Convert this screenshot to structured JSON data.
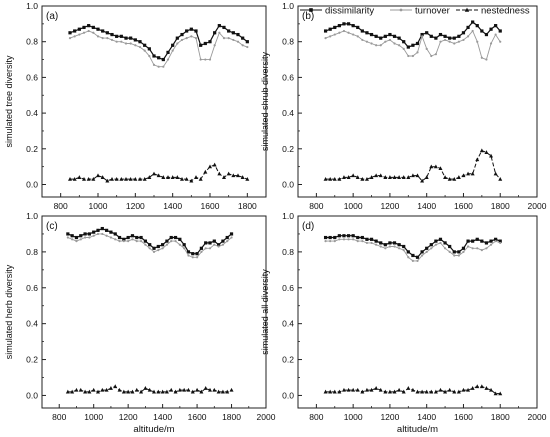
{
  "legend": {
    "items": [
      {
        "label": "dissimilarity",
        "marker": "square",
        "color": "#111111",
        "dash": "solid"
      },
      {
        "label": "turnover",
        "marker": "circle",
        "color": "#9a9a9a",
        "dash": "solid"
      },
      {
        "label": "nestedness",
        "marker": "triangle",
        "color": "#111111",
        "dash": "dashed"
      }
    ],
    "placement": "top-right"
  },
  "chart_data": [
    {
      "type": "line",
      "panel_label": "(a)",
      "xlabel": "",
      "ylabel": "simulated tree diversity",
      "xlim": [
        700,
        1900
      ],
      "ylim": [
        -0.07,
        1.0
      ],
      "xticks": [
        "800",
        "1000",
        "1200",
        "1400",
        "1600",
        "1800"
      ],
      "yticks": [
        "0.0",
        "0.2",
        "0.4",
        "0.6",
        "0.8",
        "1.0"
      ],
      "x": [
        850,
        875,
        900,
        925,
        950,
        975,
        1000,
        1025,
        1050,
        1075,
        1100,
        1125,
        1150,
        1175,
        1200,
        1225,
        1250,
        1275,
        1300,
        1325,
        1350,
        1375,
        1400,
        1425,
        1450,
        1475,
        1500,
        1525,
        1550,
        1575,
        1600,
        1625,
        1650,
        1675,
        1700,
        1725,
        1750,
        1775,
        1800
      ],
      "series": [
        {
          "name": "dissimilarity",
          "values": [
            0.85,
            0.86,
            0.87,
            0.88,
            0.89,
            0.88,
            0.87,
            0.86,
            0.85,
            0.84,
            0.83,
            0.83,
            0.82,
            0.82,
            0.81,
            0.8,
            0.78,
            0.76,
            0.72,
            0.71,
            0.7,
            0.74,
            0.78,
            0.82,
            0.84,
            0.86,
            0.87,
            0.86,
            0.78,
            0.79,
            0.8,
            0.85,
            0.89,
            0.88,
            0.86,
            0.85,
            0.84,
            0.82,
            0.8
          ]
        },
        {
          "name": "turnover",
          "values": [
            0.82,
            0.83,
            0.84,
            0.85,
            0.86,
            0.85,
            0.83,
            0.82,
            0.82,
            0.81,
            0.8,
            0.8,
            0.79,
            0.79,
            0.78,
            0.77,
            0.75,
            0.72,
            0.67,
            0.66,
            0.66,
            0.7,
            0.75,
            0.79,
            0.81,
            0.82,
            0.83,
            0.82,
            0.7,
            0.7,
            0.7,
            0.78,
            0.85,
            0.82,
            0.82,
            0.81,
            0.8,
            0.78,
            0.77
          ]
        },
        {
          "name": "nestedness",
          "values": [
            0.03,
            0.03,
            0.04,
            0.03,
            0.03,
            0.03,
            0.05,
            0.04,
            0.02,
            0.03,
            0.03,
            0.03,
            0.03,
            0.03,
            0.03,
            0.03,
            0.03,
            0.04,
            0.06,
            0.05,
            0.04,
            0.04,
            0.04,
            0.04,
            0.03,
            0.03,
            0.02,
            0.04,
            0.03,
            0.07,
            0.1,
            0.11,
            0.06,
            0.04,
            0.06,
            0.05,
            0.05,
            0.04,
            0.03
          ]
        }
      ]
    },
    {
      "type": "line",
      "panel_label": "(b)",
      "xlabel": "",
      "ylabel": "simulated shrub diversity",
      "xlim": [
        700,
        2000
      ],
      "ylim": [
        -0.07,
        1.0
      ],
      "xticks": [
        "800",
        "1000",
        "1200",
        "1400",
        "1600",
        "1800",
        "2000"
      ],
      "yticks": [
        "0.0",
        "0.2",
        "0.4",
        "0.6",
        "0.8",
        "1.0"
      ],
      "x": [
        850,
        875,
        900,
        925,
        950,
        975,
        1000,
        1025,
        1050,
        1075,
        1100,
        1125,
        1150,
        1175,
        1200,
        1225,
        1250,
        1275,
        1300,
        1325,
        1350,
        1375,
        1400,
        1425,
        1450,
        1475,
        1500,
        1525,
        1550,
        1575,
        1600,
        1625,
        1650,
        1675,
        1700,
        1725,
        1750,
        1775,
        1800
      ],
      "series": [
        {
          "name": "dissimilarity",
          "values": [
            0.86,
            0.87,
            0.88,
            0.89,
            0.9,
            0.9,
            0.89,
            0.88,
            0.86,
            0.85,
            0.84,
            0.83,
            0.82,
            0.83,
            0.84,
            0.83,
            0.82,
            0.8,
            0.77,
            0.78,
            0.79,
            0.84,
            0.85,
            0.83,
            0.82,
            0.84,
            0.83,
            0.82,
            0.82,
            0.83,
            0.85,
            0.88,
            0.91,
            0.89,
            0.86,
            0.84,
            0.87,
            0.89,
            0.86
          ]
        },
        {
          "name": "turnover",
          "values": [
            0.82,
            0.83,
            0.84,
            0.85,
            0.86,
            0.85,
            0.84,
            0.83,
            0.81,
            0.8,
            0.79,
            0.78,
            0.78,
            0.8,
            0.81,
            0.79,
            0.78,
            0.76,
            0.72,
            0.72,
            0.74,
            0.83,
            0.76,
            0.72,
            0.73,
            0.8,
            0.81,
            0.8,
            0.79,
            0.8,
            0.81,
            0.83,
            0.86,
            0.8,
            0.71,
            0.7,
            0.79,
            0.84,
            0.8
          ]
        },
        {
          "name": "nestedness",
          "values": [
            0.03,
            0.03,
            0.03,
            0.03,
            0.04,
            0.04,
            0.05,
            0.04,
            0.03,
            0.03,
            0.04,
            0.05,
            0.05,
            0.04,
            0.04,
            0.04,
            0.04,
            0.04,
            0.04,
            0.05,
            0.05,
            0.02,
            0.04,
            0.1,
            0.1,
            0.09,
            0.04,
            0.03,
            0.03,
            0.04,
            0.05,
            0.06,
            0.06,
            0.14,
            0.19,
            0.18,
            0.16,
            0.06,
            0.03
          ]
        }
      ]
    },
    {
      "type": "line",
      "panel_label": "(c)",
      "xlabel": "altitude/m",
      "ylabel": "simulated herb diversity",
      "xlim": [
        700,
        2000
      ],
      "ylim": [
        -0.07,
        1.0
      ],
      "xticks": [
        "800",
        "1000",
        "1200",
        "1400",
        "1600",
        "1800",
        "2000"
      ],
      "yticks": [
        "0.0",
        "0.2",
        "0.4",
        "0.6",
        "0.8",
        "1.0"
      ],
      "x": [
        850,
        875,
        900,
        925,
        950,
        975,
        1000,
        1025,
        1050,
        1075,
        1100,
        1125,
        1150,
        1175,
        1200,
        1225,
        1250,
        1275,
        1300,
        1325,
        1350,
        1375,
        1400,
        1425,
        1450,
        1475,
        1500,
        1525,
        1550,
        1575,
        1600,
        1625,
        1650,
        1675,
        1700,
        1725,
        1750,
        1775,
        1800
      ],
      "series": [
        {
          "name": "dissimilarity",
          "values": [
            0.9,
            0.89,
            0.88,
            0.89,
            0.9,
            0.9,
            0.91,
            0.92,
            0.93,
            0.92,
            0.91,
            0.9,
            0.88,
            0.87,
            0.88,
            0.89,
            0.88,
            0.88,
            0.86,
            0.84,
            0.82,
            0.83,
            0.84,
            0.86,
            0.88,
            0.88,
            0.87,
            0.84,
            0.8,
            0.79,
            0.79,
            0.82,
            0.85,
            0.85,
            0.86,
            0.84,
            0.86,
            0.88,
            0.9
          ]
        },
        {
          "name": "turnover",
          "values": [
            0.88,
            0.87,
            0.86,
            0.87,
            0.88,
            0.88,
            0.89,
            0.9,
            0.9,
            0.89,
            0.88,
            0.87,
            0.86,
            0.86,
            0.86,
            0.87,
            0.86,
            0.86,
            0.84,
            0.82,
            0.8,
            0.81,
            0.82,
            0.84,
            0.86,
            0.86,
            0.84,
            0.82,
            0.78,
            0.77,
            0.77,
            0.8,
            0.82,
            0.82,
            0.84,
            0.83,
            0.84,
            0.86,
            0.88
          ]
        },
        {
          "name": "nestedness",
          "values": [
            0.02,
            0.02,
            0.03,
            0.03,
            0.02,
            0.02,
            0.03,
            0.02,
            0.03,
            0.03,
            0.04,
            0.05,
            0.03,
            0.02,
            0.02,
            0.02,
            0.03,
            0.02,
            0.04,
            0.03,
            0.02,
            0.02,
            0.02,
            0.02,
            0.03,
            0.02,
            0.03,
            0.03,
            0.03,
            0.02,
            0.03,
            0.02,
            0.04,
            0.03,
            0.03,
            0.02,
            0.02,
            0.02,
            0.03
          ]
        }
      ]
    },
    {
      "type": "line",
      "panel_label": "(d)",
      "xlabel": "altitude/m",
      "ylabel": "simulated all diversity",
      "xlim": [
        700,
        2000
      ],
      "ylim": [
        -0.07,
        1.0
      ],
      "xticks": [
        "800",
        "1000",
        "1200",
        "1400",
        "1600",
        "1800",
        "2000"
      ],
      "yticks": [
        "0.0",
        "0.2",
        "0.4",
        "0.6",
        "0.8",
        "1.0"
      ],
      "x": [
        850,
        875,
        900,
        925,
        950,
        975,
        1000,
        1025,
        1050,
        1075,
        1100,
        1125,
        1150,
        1175,
        1200,
        1225,
        1250,
        1275,
        1300,
        1325,
        1350,
        1375,
        1400,
        1425,
        1450,
        1475,
        1500,
        1525,
        1550,
        1575,
        1600,
        1625,
        1650,
        1675,
        1700,
        1725,
        1750,
        1775,
        1800
      ],
      "series": [
        {
          "name": "dissimilarity",
          "values": [
            0.88,
            0.88,
            0.88,
            0.89,
            0.89,
            0.89,
            0.89,
            0.88,
            0.88,
            0.87,
            0.87,
            0.86,
            0.85,
            0.84,
            0.85,
            0.85,
            0.84,
            0.83,
            0.8,
            0.78,
            0.77,
            0.8,
            0.82,
            0.84,
            0.86,
            0.87,
            0.85,
            0.83,
            0.8,
            0.8,
            0.82,
            0.86,
            0.86,
            0.87,
            0.86,
            0.85,
            0.86,
            0.87,
            0.86
          ]
        },
        {
          "name": "turnover",
          "values": [
            0.86,
            0.86,
            0.86,
            0.87,
            0.87,
            0.87,
            0.87,
            0.86,
            0.86,
            0.85,
            0.85,
            0.84,
            0.83,
            0.82,
            0.83,
            0.83,
            0.82,
            0.81,
            0.77,
            0.75,
            0.75,
            0.78,
            0.8,
            0.82,
            0.84,
            0.85,
            0.82,
            0.8,
            0.78,
            0.78,
            0.8,
            0.83,
            0.82,
            0.82,
            0.81,
            0.82,
            0.84,
            0.86,
            0.85
          ]
        },
        {
          "name": "nestedness",
          "values": [
            0.02,
            0.02,
            0.02,
            0.02,
            0.03,
            0.03,
            0.03,
            0.03,
            0.02,
            0.03,
            0.03,
            0.04,
            0.03,
            0.02,
            0.02,
            0.02,
            0.03,
            0.02,
            0.04,
            0.03,
            0.02,
            0.02,
            0.02,
            0.02,
            0.02,
            0.03,
            0.02,
            0.03,
            0.02,
            0.02,
            0.03,
            0.03,
            0.04,
            0.05,
            0.05,
            0.04,
            0.03,
            0.01,
            0.01
          ]
        }
      ]
    }
  ]
}
